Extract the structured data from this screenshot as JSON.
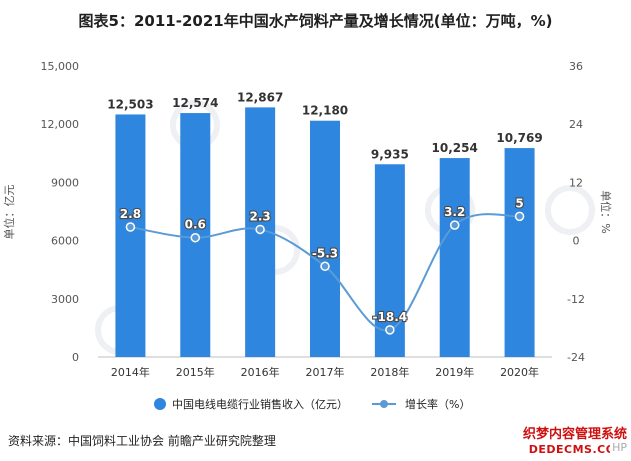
{
  "title": "图表5：2011-2021年中国水产饲料产量及增长情况(单位：万吨，%)",
  "source": "资料来源：中国饲料工业协会 前瞻产业研究院整理",
  "watermark_stamp": {
    "line1": "织梦内容管理系统",
    "line2": "DEDECMS.COM",
    "line3": "HP"
  },
  "colors": {
    "bar": "#2e86de",
    "line": "#5b9bd5",
    "axis_text": "#555555",
    "grid": "#dddddd"
  },
  "chart_data": {
    "type": "bar",
    "categories": [
      "2014年",
      "2015年",
      "2016年",
      "2017年",
      "2018年",
      "2019年",
      "2020年"
    ],
    "series": [
      {
        "name": "中国电线电缆行业销售收入（亿元）",
        "type": "bar",
        "axis": "left",
        "values": [
          12503,
          12574,
          12867,
          12180,
          9935,
          10254,
          10769
        ],
        "labels": [
          "12,503",
          "12,574",
          "12,867",
          "12,180",
          "9,935",
          "10,254",
          "10,769"
        ]
      },
      {
        "name": "增长率（%）",
        "type": "line",
        "axis": "right",
        "values": [
          2.8,
          0.6,
          2.3,
          -5.3,
          -18.4,
          3.2,
          5
        ],
        "labels": [
          "2.8",
          "0.6",
          "2.3",
          "-5.3",
          "-18.4",
          "3.2",
          "5"
        ]
      }
    ],
    "ylabel": "单位：亿元",
    "ylabel_right": "单位：%",
    "ylim": [
      0,
      15000
    ],
    "yticks": [
      "0",
      "3000",
      "6000",
      "9000",
      "12,000",
      "15,000"
    ],
    "ylim_right": [
      -24,
      36
    ],
    "yticks_right": [
      "-24",
      "-12",
      "0",
      "12",
      "24",
      "36"
    ],
    "grid": false,
    "legend_position": "bottom"
  }
}
